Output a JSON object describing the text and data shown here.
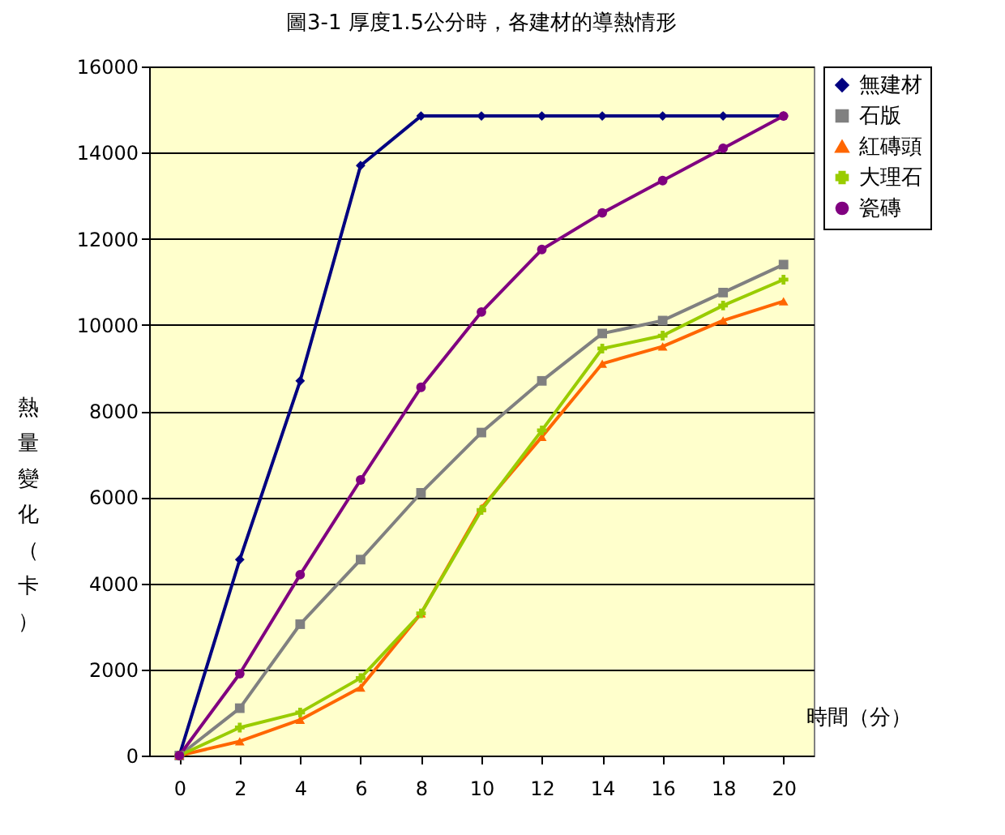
{
  "chart_data": {
    "type": "line",
    "title": "圖3-1  厚度1.5公分時，各建材的導熱情形",
    "xlabel": "時間（分）",
    "ylabel": "熱量變化（卡）",
    "categories": [
      "0",
      "2",
      "4",
      "6",
      "8",
      "10",
      "12",
      "14",
      "16",
      "18",
      "20"
    ],
    "ylim": [
      0,
      16000
    ],
    "yticks": [
      0,
      2000,
      4000,
      6000,
      8000,
      10000,
      12000,
      14000,
      16000
    ],
    "grid": "y",
    "legend": "right",
    "series": [
      {
        "name": "無建材",
        "color": "#000080",
        "marker": "diamond",
        "values": [
          0,
          4550,
          8700,
          13700,
          14850,
          14850,
          14850,
          14850,
          14850,
          14850,
          14850
        ]
      },
      {
        "name": "石版",
        "color": "#808080",
        "marker": "square",
        "values": [
          0,
          1100,
          3050,
          4550,
          6100,
          7500,
          8700,
          9800,
          10100,
          10750,
          11400
        ]
      },
      {
        "name": "紅磚頭",
        "color": "#ff6600",
        "marker": "triangle",
        "values": [
          0,
          330,
          830,
          1580,
          3300,
          5750,
          7400,
          9100,
          9500,
          10100,
          10550
        ]
      },
      {
        "name": "大理石",
        "color": "#99cc00",
        "marker": "cross",
        "values": [
          0,
          650,
          1000,
          1800,
          3300,
          5700,
          7550,
          9450,
          9750,
          10450,
          11050
        ]
      },
      {
        "name": "瓷磚",
        "color": "#800080",
        "marker": "circle",
        "values": [
          0,
          1900,
          4200,
          6400,
          8550,
          10300,
          11750,
          12600,
          13350,
          14100,
          14850
        ]
      }
    ]
  }
}
